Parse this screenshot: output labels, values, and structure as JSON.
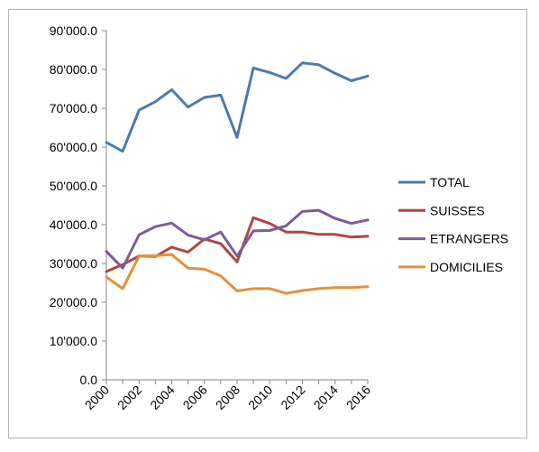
{
  "chart_data": {
    "type": "line",
    "title": "",
    "xlabel": "",
    "ylabel": "",
    "x": [
      2000,
      2001,
      2002,
      2003,
      2004,
      2005,
      2006,
      2007,
      2008,
      2009,
      2010,
      2011,
      2012,
      2013,
      2014,
      2015,
      2016
    ],
    "x_tick_labels": [
      "2000",
      "2002",
      "2004",
      "2006",
      "2008",
      "2010",
      "2012",
      "2014",
      "2016"
    ],
    "y_tick_labels": [
      "0.0",
      "10'000.0",
      "20'000.0",
      "30'000.0",
      "40'000.0",
      "50'000.0",
      "60'000.0",
      "70'000.0",
      "80'000.0",
      "90'000.0"
    ],
    "ylim": [
      0,
      90000
    ],
    "grid": false,
    "legend_position": "right",
    "series": [
      {
        "name": "TOTAL",
        "color": "#4a7bab",
        "values": [
          61200,
          58900,
          69500,
          71700,
          74800,
          70300,
          72800,
          73400,
          62500,
          80400,
          79200,
          77700,
          81700,
          81200,
          79000,
          77100,
          78300
        ]
      },
      {
        "name": "SUISSES",
        "color": "#b0463f",
        "values": [
          27900,
          29700,
          31900,
          31800,
          34200,
          32900,
          36300,
          35100,
          30400,
          41800,
          40300,
          38100,
          38100,
          37500,
          37500,
          36800,
          37000
        ]
      },
      {
        "name": "ETRANGERS",
        "color": "#7d5c9c",
        "values": [
          33100,
          28800,
          37400,
          39500,
          40400,
          37300,
          36100,
          38100,
          31900,
          38400,
          38500,
          39700,
          43400,
          43700,
          41600,
          40300,
          41200
        ]
      },
      {
        "name": "DOMICILIES",
        "color": "#e0913e",
        "values": [
          26500,
          23500,
          31900,
          32000,
          32300,
          28800,
          28500,
          26800,
          22900,
          23500,
          23500,
          22300,
          23000,
          23500,
          23800,
          23800,
          24000
        ]
      }
    ]
  }
}
